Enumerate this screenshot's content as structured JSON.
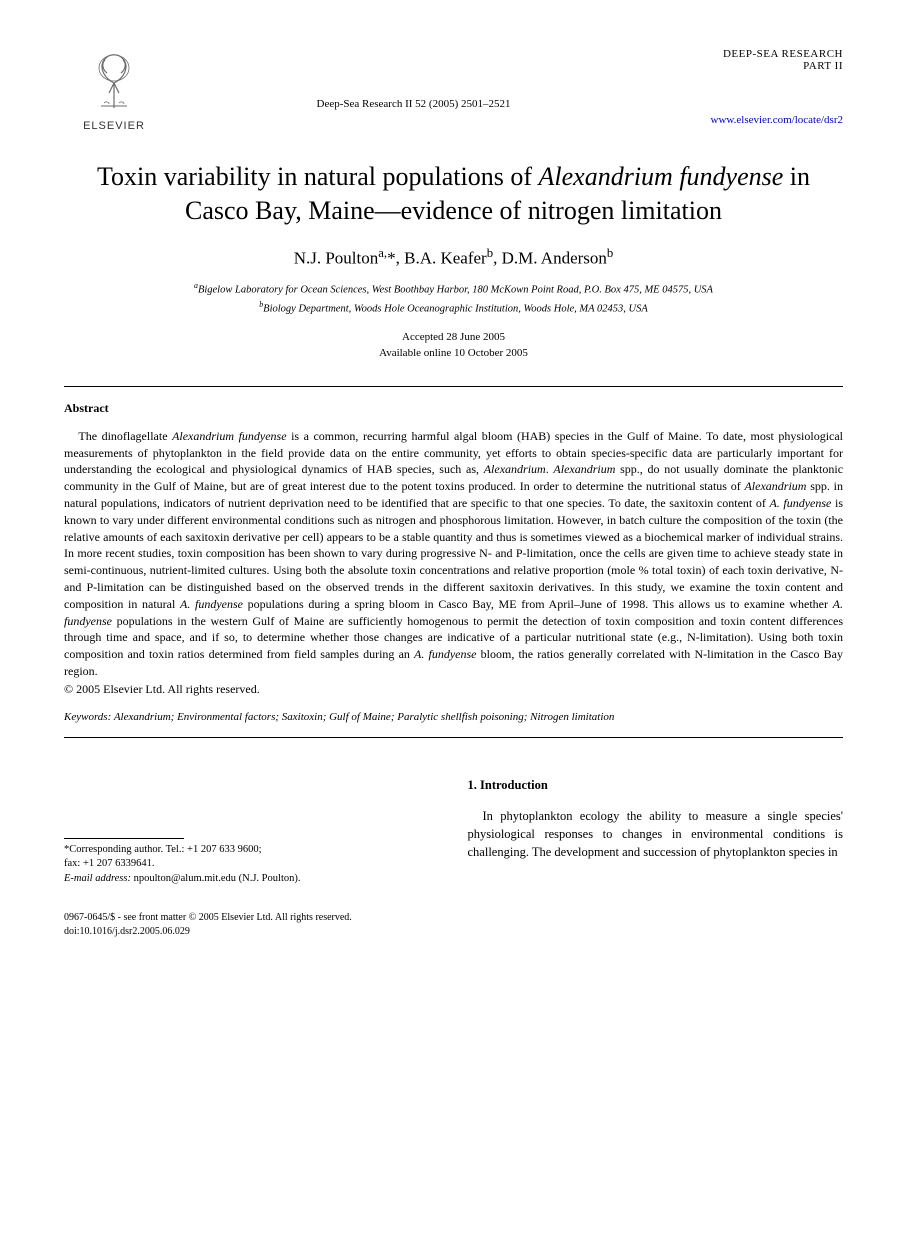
{
  "header": {
    "publisher_name": "ELSEVIER",
    "journal_reference": "Deep-Sea Research II 52 (2005) 2501–2521",
    "journal_title_line1": "DEEP-SEA RESEARCH",
    "journal_title_line2": "PART II",
    "journal_url": "www.elsevier.com/locate/dsr2"
  },
  "article": {
    "title_html": "Toxin variability in natural populations of <span class=\"italic\">Alexandrium fundyense</span> in Casco Bay, Maine—evidence of nitrogen limitation",
    "authors_html": "N.J. Poulton<sup>a,</sup>*, B.A. Keafer<sup>b</sup>, D.M. Anderson<sup>b</sup>",
    "affiliation_a": "Bigelow Laboratory for Ocean Sciences, West Boothbay Harbor, 180 McKown Point Road, P.O. Box 475, ME 04575, USA",
    "affiliation_b": "Biology Department, Woods Hole Oceanographic Institution, Woods Hole, MA 02453, USA",
    "accepted": "Accepted 28 June 2005",
    "available_online": "Available online 10 October 2005"
  },
  "abstract": {
    "heading": "Abstract",
    "body_html": "The dinoflagellate <span class=\"italic\">Alexandrium fundyense</span> is a common, recurring harmful algal bloom (HAB) species in the Gulf of Maine. To date, most physiological measurements of phytoplankton in the field provide data on the entire community, yet efforts to obtain species-specific data are particularly important for understanding the ecological and physiological dynamics of HAB species, such as, <span class=\"italic\">Alexandrium</span>. <span class=\"italic\">Alexandrium</span> spp., do not usually dominate the planktonic community in the Gulf of Maine, but are of great interest due to the potent toxins produced. In order to determine the nutritional status of <span class=\"italic\">Alexandrium</span> spp. in natural populations, indicators of nutrient deprivation need to be identified that are specific to that one species. To date, the saxitoxin content of <span class=\"italic\">A. fundyense</span> is known to vary under different environmental conditions such as nitrogen and phosphorous limitation. However, in batch culture the composition of the toxin (the relative amounts of each saxitoxin derivative per cell) appears to be a stable quantity and thus is sometimes viewed as a biochemical marker of individual strains. In more recent studies, toxin composition has been shown to vary during progressive N- and P-limitation, once the cells are given time to achieve steady state in semi-continuous, nutrient-limited cultures. Using both the absolute toxin concentrations and relative proportion (mole % total toxin) of each toxin derivative, N- and P-limitation can be distinguished based on the observed trends in the different saxitoxin derivatives. In this study, we examine the toxin content and composition in natural <span class=\"italic\">A. fundyense</span> populations during a spring bloom in Casco Bay, ME from April–June of 1998. This allows us to examine whether <span class=\"italic\">A. fundyense</span> populations in the western Gulf of Maine are sufficiently homogenous to permit the detection of toxin composition and toxin content differences through time and space, and if so, to determine whether those changes are indicative of a particular nutritional state (e.g., N-limitation). Using both toxin composition and toxin ratios determined from field samples during an <span class=\"italic\">A. fundyense</span> bloom, the ratios generally correlated with N-limitation in the Casco Bay region.",
    "copyright": "© 2005 Elsevier Ltd. All rights reserved."
  },
  "keywords": {
    "label": "Keywords:",
    "list_html": "<span class=\"italic\">Alexandrium</span>; Environmental factors; Saxitoxin; Gulf of Maine; Paralytic shellfish poisoning; Nitrogen limitation"
  },
  "footnote": {
    "corresponding": "*Corresponding author. Tel.: +1 207 633 9600;",
    "fax": "fax: +1 207 6339641.",
    "email_label": "E-mail address:",
    "email": "npoulton@alum.mit.edu (N.J. Poulton)."
  },
  "introduction": {
    "heading": "1. Introduction",
    "body": "In phytoplankton ecology the ability to measure a single species' physiological responses to changes in environmental conditions is challenging. The development and succession of phytoplankton species in"
  },
  "footer": {
    "front_matter": "0967-0645/$ - see front matter © 2005 Elsevier Ltd. All rights reserved.",
    "doi": "doi:10.1016/j.dsr2.2005.06.029"
  },
  "colors": {
    "text": "#000000",
    "background": "#ffffff",
    "link": "#0000cc",
    "logo_orange": "#e78b2f"
  }
}
